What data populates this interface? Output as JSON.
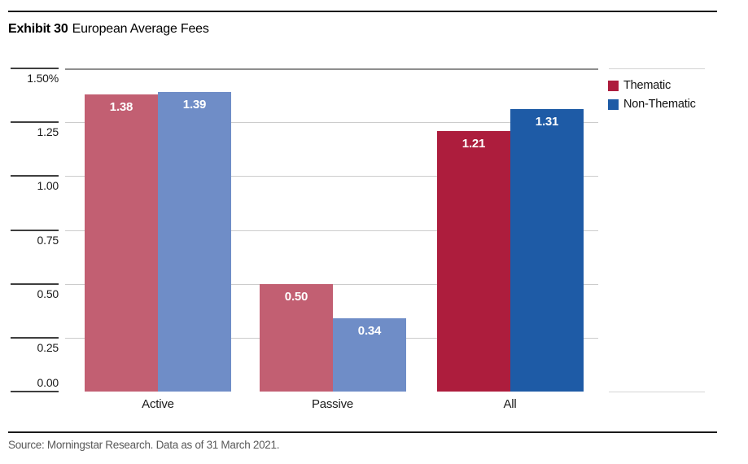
{
  "title": {
    "exhibit": "Exhibit 30",
    "text": "European Average Fees"
  },
  "source": "Source: Morningstar Research. Data as of 31 March 2021.",
  "legend": {
    "items": [
      {
        "label": "Thematic",
        "color": "#ad1d3d"
      },
      {
        "label": "Non-Thematic",
        "color": "#1e5ba6"
      }
    ]
  },
  "chart_data": {
    "type": "bar",
    "title": "Exhibit 30 European Average Fees",
    "categories": [
      "Active",
      "Passive",
      "All"
    ],
    "series": [
      {
        "name": "Thematic",
        "values": [
          1.38,
          0.5,
          1.21
        ],
        "bar_colors": [
          "#c25f72",
          "#c25f72",
          "#ad1d3d"
        ]
      },
      {
        "name": "Non-Thematic",
        "values": [
          1.39,
          0.34,
          1.31
        ],
        "bar_colors": [
          "#6f8dc7",
          "#6f8dc7",
          "#1e5ba6"
        ]
      }
    ],
    "value_labels": {
      "Thematic": [
        "1.38",
        "0.50",
        "1.21"
      ],
      "Non-Thematic": [
        "1.39",
        "0.34",
        "1.31"
      ]
    },
    "unit": "%",
    "ylim": [
      0,
      1.5
    ],
    "yticks": [
      {
        "value": 1.5,
        "label": "1.50%"
      },
      {
        "value": 1.25,
        "label": "1.25"
      },
      {
        "value": 1.0,
        "label": "1.00"
      },
      {
        "value": 0.75,
        "label": "0.75"
      },
      {
        "value": 0.5,
        "label": "0.50"
      },
      {
        "value": 0.25,
        "label": "0.25"
      },
      {
        "value": 0.0,
        "label": "0.00"
      }
    ],
    "xlabel": "",
    "ylabel": "",
    "grid": true,
    "legend_position": "top-right",
    "highlight_category": "All"
  },
  "style": {
    "grid_light": "#cccccc",
    "grid_top": "#8e8e8e",
    "tick_dark": "#3f3f3f",
    "gutter_line": "#d4d4d4",
    "axis_text": "#1a1a1a",
    "value_label_color": "#ffffff"
  }
}
